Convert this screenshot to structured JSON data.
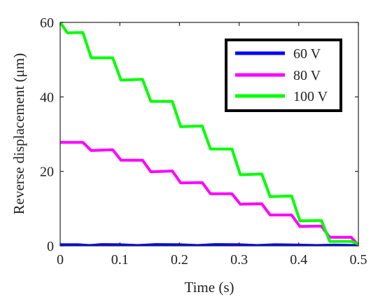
{
  "chart_data": {
    "type": "line",
    "xlabel": "Time (s)",
    "ylabel": "Reverse displacement (μm)",
    "xlim": [
      0,
      0.5
    ],
    "ylim": [
      0,
      60
    ],
    "xticks": [
      0,
      0.1,
      0.2,
      0.3,
      0.4,
      0.5
    ],
    "xtick_labels": [
      "0",
      "0.1",
      "0.2",
      "0.3",
      "0.4",
      "0.5"
    ],
    "yticks": [
      0,
      20,
      40,
      60
    ],
    "ytick_labels": [
      "0",
      "20",
      "40",
      "60"
    ],
    "grid": false,
    "legend_position": "top-right",
    "series": [
      {
        "name": "60 V",
        "color": "#0000ff",
        "points": [
          [
            0.0,
            0.3
          ],
          [
            0.03,
            0.3
          ],
          [
            0.05,
            0.1
          ],
          [
            0.07,
            0.35
          ],
          [
            0.1,
            0.3
          ],
          [
            0.13,
            0.1
          ],
          [
            0.16,
            0.35
          ],
          [
            0.2,
            0.3
          ],
          [
            0.23,
            0.1
          ],
          [
            0.26,
            0.35
          ],
          [
            0.3,
            0.3
          ],
          [
            0.33,
            0.1
          ],
          [
            0.36,
            0.3
          ],
          [
            0.4,
            0.2
          ],
          [
            0.43,
            0.1
          ],
          [
            0.46,
            0.2
          ],
          [
            0.5,
            0.1
          ]
        ]
      },
      {
        "name": "80 V",
        "color": "#ff00ff",
        "points": [
          [
            0.0,
            27.8
          ],
          [
            0.038,
            27.8
          ],
          [
            0.052,
            25.6
          ],
          [
            0.088,
            25.8
          ],
          [
            0.102,
            23.0
          ],
          [
            0.138,
            23.0
          ],
          [
            0.152,
            19.9
          ],
          [
            0.188,
            20.1
          ],
          [
            0.202,
            16.9
          ],
          [
            0.238,
            17.0
          ],
          [
            0.252,
            14.0
          ],
          [
            0.288,
            14.0
          ],
          [
            0.302,
            11.2
          ],
          [
            0.338,
            11.3
          ],
          [
            0.352,
            8.3
          ],
          [
            0.388,
            8.3
          ],
          [
            0.402,
            5.2
          ],
          [
            0.438,
            5.3
          ],
          [
            0.452,
            2.3
          ],
          [
            0.488,
            2.3
          ],
          [
            0.5,
            0.2
          ]
        ]
      },
      {
        "name": "100 V",
        "color": "#00ff00",
        "points": [
          [
            0.0,
            60.0
          ],
          [
            0.012,
            57.2
          ],
          [
            0.038,
            57.3
          ],
          [
            0.052,
            50.5
          ],
          [
            0.088,
            50.5
          ],
          [
            0.102,
            44.5
          ],
          [
            0.138,
            44.7
          ],
          [
            0.152,
            38.8
          ],
          [
            0.188,
            38.8
          ],
          [
            0.202,
            32.0
          ],
          [
            0.238,
            32.2
          ],
          [
            0.252,
            26.0
          ],
          [
            0.288,
            26.0
          ],
          [
            0.302,
            19.1
          ],
          [
            0.338,
            19.3
          ],
          [
            0.352,
            13.2
          ],
          [
            0.388,
            13.4
          ],
          [
            0.402,
            6.7
          ],
          [
            0.438,
            6.8
          ],
          [
            0.452,
            1.2
          ],
          [
            0.488,
            1.2
          ],
          [
            0.5,
            0.5
          ]
        ]
      }
    ]
  }
}
